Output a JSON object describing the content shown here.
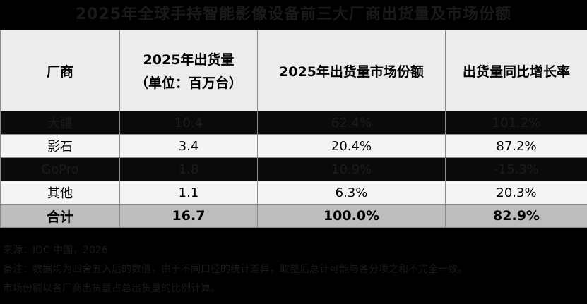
{
  "title": "2025年全球手持智能影像设备前三大厂商出货量及市场份额",
  "table": {
    "headers": {
      "vendor": "厂商",
      "shipments_line1": "2025年出货量",
      "shipments_line2": "（单位：百万台）",
      "share": "2025年出货量市场份额",
      "growth": "出货量同比增长率"
    },
    "rows": [
      {
        "vendor": "大疆",
        "shipments": "10.4",
        "share": "62.4%",
        "growth": "101.2%"
      },
      {
        "vendor": "影石",
        "shipments": "3.4",
        "share": "20.4%",
        "growth": "87.2%"
      },
      {
        "vendor": "GoPro",
        "shipments": "1.8",
        "share": "10.9%",
        "growth": "-15.3%"
      },
      {
        "vendor": "其他",
        "shipments": "1.1",
        "share": "6.3%",
        "growth": "20.3%"
      }
    ],
    "total": {
      "vendor": "合计",
      "shipments": "16.7",
      "share": "100.0%",
      "growth": "82.9%"
    }
  },
  "footer": {
    "source": "来源：IDC 中国，2026",
    "note_line1": "备注：数据均为四舍五入后的数值，由于不同口径的统计差异，取整后总计可能与各分项之和不完全一致。",
    "note_line2": "市场份额以各厂商出货量占总出货量的比例计算。"
  }
}
